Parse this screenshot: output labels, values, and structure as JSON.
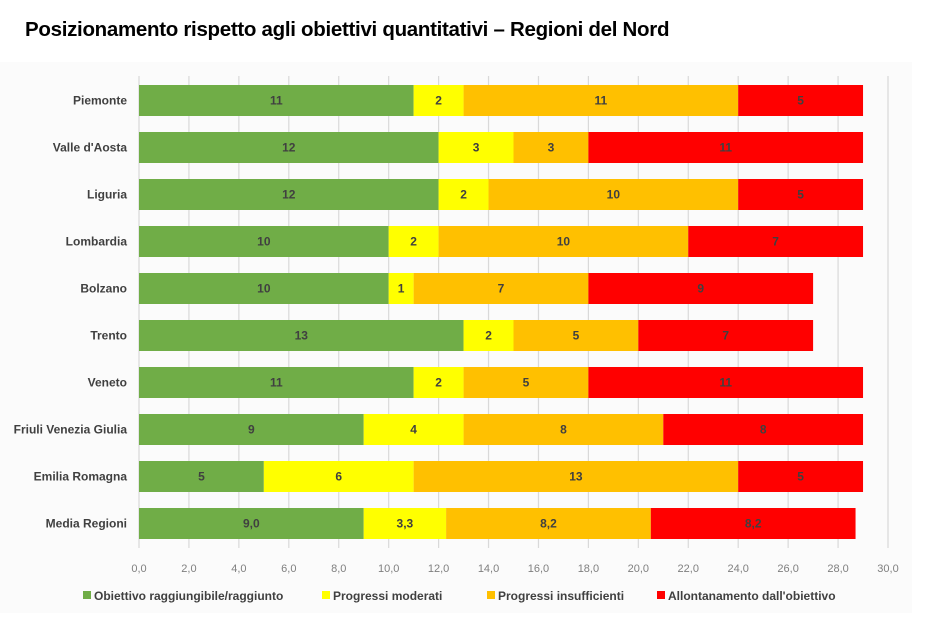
{
  "title": "Posizionamento rispetto agli obiettivi quantitativi – Regioni del Nord",
  "chart_data": {
    "type": "bar",
    "orientation": "horizontal",
    "stacked": true,
    "title": "Posizionamento rispetto agli obiettivi quantitativi – Regioni del Nord",
    "xlabel": "",
    "ylabel": "",
    "xlim": [
      0,
      30
    ],
    "x_ticks": [
      "0,0",
      "2,0",
      "4,0",
      "6,0",
      "8,0",
      "10,0",
      "12,0",
      "14,0",
      "16,0",
      "18,0",
      "20,0",
      "22,0",
      "24,0",
      "26,0",
      "28,0",
      "30,0"
    ],
    "grid": "vertical",
    "legend_position": "bottom",
    "categories": [
      "Piemonte",
      "Valle d'Aosta",
      "Liguria",
      "Lombardia",
      "Bolzano",
      "Trento",
      "Veneto",
      "Friuli Venezia Giulia",
      "Emilia Romagna",
      "Media Regioni"
    ],
    "series": [
      {
        "name": "Obiettivo raggiungibile/raggiunto",
        "color": "#70ad47",
        "values": [
          11,
          12,
          12,
          10,
          10,
          13,
          11,
          9,
          5,
          9.0
        ],
        "labels": [
          "11",
          "12",
          "12",
          "10",
          "10",
          "13",
          "11",
          "9",
          "5",
          "9,0"
        ]
      },
      {
        "name": "Progressi moderati",
        "color": "#ffff00",
        "values": [
          2,
          3,
          2,
          2,
          1,
          2,
          2,
          4,
          6,
          3.3
        ],
        "labels": [
          "2",
          "3",
          "2",
          "2",
          "1",
          "2",
          "2",
          "4",
          "6",
          "3,3"
        ]
      },
      {
        "name": "Progressi insufficienti",
        "color": "#ffc000",
        "values": [
          11,
          3,
          10,
          10,
          7,
          5,
          5,
          8,
          13,
          8.2
        ],
        "labels": [
          "11",
          "3",
          "10",
          "10",
          "7",
          "5",
          "5",
          "8",
          "13",
          "8,2"
        ]
      },
      {
        "name": "Allontanamento dall'obiettivo",
        "color": "#ff0000",
        "values": [
          5,
          11,
          5,
          7,
          9,
          7,
          11,
          8,
          5,
          8.2
        ],
        "labels": [
          "5",
          "11",
          "5",
          "7",
          "9",
          "7",
          "11",
          "8",
          "5",
          "8,2"
        ]
      }
    ]
  }
}
